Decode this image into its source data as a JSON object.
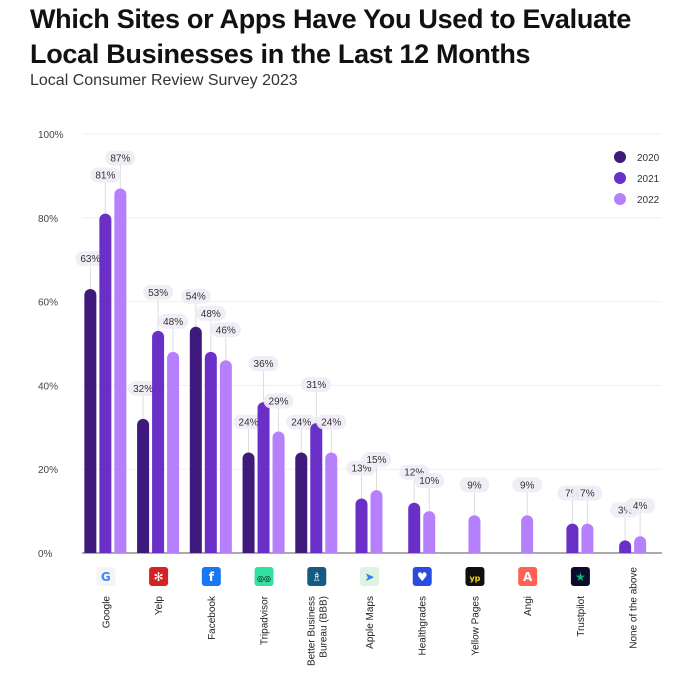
{
  "header": {
    "title": "Which Sites or Apps Have You Used to Evaluate Local Businesses in the Last 12 Months",
    "subtitle": "Local Consumer Review Survey 2023"
  },
  "chart_data": {
    "type": "bar",
    "title": "Which Sites or Apps Have You Used to Evaluate Local Businesses in the Last 12 Months",
    "subtitle": "Local Consumer Review Survey 2023",
    "xlabel": "",
    "ylabel": "",
    "ylim": [
      0,
      100
    ],
    "yticks": [
      "0%",
      "20%",
      "40%",
      "60%",
      "80%",
      "100%"
    ],
    "grid": true,
    "legend_position": "top-right",
    "categories": [
      "Google",
      "Yelp",
      "Facebook",
      "Tripadvisor",
      "Better Business Bureau (BBB)",
      "Apple Maps",
      "Healthgrades",
      "Yellow Pages",
      "Angi",
      "Trustpilot",
      "None of the above"
    ],
    "category_icons": [
      "google-icon",
      "yelp-icon",
      "facebook-icon",
      "tripadvisor-icon",
      "bbb-icon",
      "apple-maps-icon",
      "healthgrades-icon",
      "yellow-pages-icon",
      "angi-icon",
      "trustpilot-icon",
      null
    ],
    "series": [
      {
        "name": "2020",
        "color": "#3e1a7d",
        "values": [
          63,
          32,
          54,
          24,
          24,
          null,
          null,
          null,
          null,
          null,
          null
        ]
      },
      {
        "name": "2021",
        "color": "#6a2fc7",
        "values": [
          81,
          53,
          48,
          36,
          31,
          13,
          12,
          null,
          null,
          7,
          3
        ]
      },
      {
        "name": "2022",
        "color": "#b67ffb",
        "values": [
          87,
          48,
          46,
          29,
          24,
          15,
          10,
          9,
          9,
          7,
          4
        ]
      }
    ]
  }
}
